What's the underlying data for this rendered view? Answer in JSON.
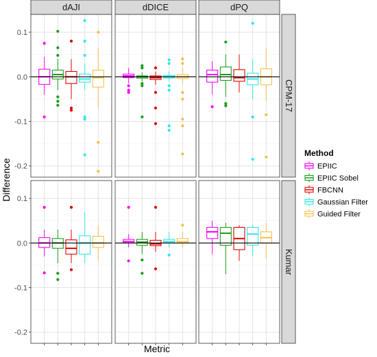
{
  "chart_data": {
    "type": "boxplot",
    "xlabel": "Metric",
    "ylabel": "Difference",
    "ylim": [
      -0.225,
      0.14
    ],
    "yticks": [
      0.1,
      0.0,
      -0.1,
      -0.2
    ],
    "ytick_labels": [
      "0.1",
      "0.0",
      "-0.1",
      "-0.2"
    ],
    "grid": true,
    "reference_line_y": 0,
    "columns": [
      "dAJI",
      "dDICE",
      "dPQ"
    ],
    "rows": [
      "CPM-17",
      "Kumar"
    ],
    "legend": {
      "title": "Method",
      "position": "right",
      "entries": [
        {
          "name": "EPIIC",
          "color": "#ff00ff"
        },
        {
          "name": "EPIIC Sobel",
          "color": "#1a9c1a"
        },
        {
          "name": "FBCNN",
          "color": "#e00000"
        },
        {
          "name": "Gaussian Filter",
          "color": "#33e6e6"
        },
        {
          "name": "Guided Filter",
          "color": "#f5c04a"
        }
      ]
    },
    "panels": [
      {
        "row": "CPM-17",
        "column": "dAJI",
        "boxes": [
          {
            "method": "EPIIC",
            "whisker_low": -0.04,
            "q1": -0.017,
            "median": 0.0,
            "q3": 0.017,
            "whisker_high": 0.045,
            "outliers": [
              0.075,
              -0.09
            ]
          },
          {
            "method": "EPIIC Sobel",
            "whisker_low": -0.03,
            "q1": -0.005,
            "median": 0.005,
            "q3": 0.015,
            "whisker_high": 0.04,
            "outliers": [
              0.102,
              0.065,
              0.048,
              -0.045,
              -0.055,
              -0.064
            ]
          },
          {
            "method": "FBCNN",
            "whisker_low": -0.05,
            "q1": -0.015,
            "median": 0.0,
            "q3": 0.012,
            "whisker_high": 0.04,
            "outliers": [
              0.08,
              -0.07,
              -0.075
            ]
          },
          {
            "method": "Gaussian Filter",
            "whisker_low": -0.03,
            "q1": -0.012,
            "median": -0.005,
            "q3": 0.006,
            "whisker_high": 0.03,
            "outliers": [
              0.126,
              0.08,
              0.048,
              -0.09,
              -0.095,
              -0.175
            ]
          },
          {
            "method": "Guided Filter",
            "whisker_low": -0.07,
            "q1": -0.023,
            "median": -0.002,
            "q3": 0.015,
            "whisker_high": 0.065,
            "outliers": [
              0.1,
              -0.147,
              -0.212
            ]
          }
        ]
      },
      {
        "row": "CPM-17",
        "column": "dDICE",
        "boxes": [
          {
            "method": "EPIIC",
            "whisker_low": -0.015,
            "q1": -0.002,
            "median": 0.002,
            "q3": 0.006,
            "whisker_high": 0.02,
            "outliers": [
              -0.02,
              -0.03,
              -0.035
            ]
          },
          {
            "method": "EPIIC Sobel",
            "whisker_low": -0.01,
            "q1": -0.003,
            "median": 0.0,
            "q3": 0.002,
            "whisker_high": 0.01,
            "outliers": [
              0.02,
              0.025,
              -0.015,
              -0.02,
              -0.09
            ]
          },
          {
            "method": "FBCNN",
            "whisker_low": -0.018,
            "q1": -0.006,
            "median": -0.002,
            "q3": 0.002,
            "whisker_high": 0.012,
            "outliers": [
              0.02,
              -0.035,
              -0.07,
              -0.105
            ]
          },
          {
            "method": "Gaussian Filter",
            "whisker_low": -0.01,
            "q1": -0.003,
            "median": 0.0,
            "q3": 0.003,
            "whisker_high": 0.012,
            "outliers": [
              0.038,
              0.03,
              -0.02,
              -0.03,
              -0.11,
              -0.12
            ]
          },
          {
            "method": "Guided Filter",
            "whisker_low": -0.015,
            "q1": -0.004,
            "median": 0.0,
            "q3": 0.005,
            "whisker_high": 0.02,
            "outliers": [
              0.04,
              0.03,
              -0.035,
              -0.05,
              -0.095,
              -0.11,
              -0.173
            ]
          }
        ]
      },
      {
        "row": "CPM-17",
        "column": "dPQ",
        "boxes": [
          {
            "method": "EPIIC",
            "whisker_low": -0.04,
            "q1": -0.012,
            "median": 0.005,
            "q3": 0.015,
            "whisker_high": 0.035,
            "outliers": [
              -0.067
            ]
          },
          {
            "method": "EPIIC Sobel",
            "whisker_low": -0.045,
            "q1": -0.008,
            "median": 0.005,
            "q3": 0.022,
            "whisker_high": 0.05,
            "outliers": [
              0.078,
              -0.06,
              -0.065
            ]
          },
          {
            "method": "FBCNN",
            "whisker_low": -0.035,
            "q1": -0.01,
            "median": -0.002,
            "q3": 0.016,
            "whisker_high": 0.05,
            "outliers": []
          },
          {
            "method": "Gaussian Filter",
            "whisker_low": -0.05,
            "q1": -0.018,
            "median": -0.005,
            "q3": 0.008,
            "whisker_high": 0.04,
            "outliers": [
              0.12,
              -0.09,
              -0.185
            ]
          },
          {
            "method": "Guided Filter",
            "whisker_low": -0.055,
            "q1": -0.018,
            "median": 0.0,
            "q3": 0.018,
            "whisker_high": 0.065,
            "outliers": [
              -0.085,
              -0.18
            ]
          }
        ]
      },
      {
        "row": "Kumar",
        "column": "dAJI",
        "boxes": [
          {
            "method": "EPIIC",
            "whisker_low": -0.03,
            "q1": -0.01,
            "median": 0.0,
            "q3": 0.012,
            "whisker_high": 0.03,
            "outliers": [
              0.08,
              -0.067
            ]
          },
          {
            "method": "EPIIC Sobel",
            "whisker_low": -0.045,
            "q1": -0.012,
            "median": 0.0,
            "q3": 0.01,
            "whisker_high": 0.03,
            "outliers": [
              -0.068,
              -0.082
            ]
          },
          {
            "method": "FBCNN",
            "whisker_low": -0.045,
            "q1": -0.025,
            "median": -0.012,
            "q3": 0.007,
            "whisker_high": 0.03,
            "outliers": [
              0.08,
              -0.06
            ]
          },
          {
            "method": "Gaussian Filter",
            "whisker_low": -0.045,
            "q1": -0.025,
            "median": 0.0,
            "q3": 0.016,
            "whisker_high": 0.07,
            "outliers": []
          },
          {
            "method": "Guided Filter",
            "whisker_low": -0.04,
            "q1": -0.01,
            "median": 0.0,
            "q3": 0.015,
            "whisker_high": 0.04,
            "outliers": []
          }
        ]
      },
      {
        "row": "Kumar",
        "column": "dDICE",
        "boxes": [
          {
            "method": "EPIIC",
            "whisker_low": -0.01,
            "q1": 0.0,
            "median": 0.003,
            "q3": 0.008,
            "whisker_high": 0.02,
            "outliers": [
              0.08,
              -0.04
            ]
          },
          {
            "method": "EPIIC Sobel",
            "whisker_low": -0.025,
            "q1": -0.005,
            "median": 0.002,
            "q3": 0.008,
            "whisker_high": 0.025,
            "outliers": [
              -0.038,
              -0.068
            ]
          },
          {
            "method": "FBCNN",
            "whisker_low": -0.02,
            "q1": -0.006,
            "median": -0.002,
            "q3": 0.006,
            "whisker_high": 0.025,
            "outliers": [
              0.08,
              -0.058
            ]
          },
          {
            "method": "Gaussian Filter",
            "whisker_low": -0.01,
            "q1": 0.0,
            "median": 0.003,
            "q3": 0.008,
            "whisker_high": 0.025,
            "outliers": [
              -0.027
            ]
          },
          {
            "method": "Guided Filter",
            "whisker_low": -0.01,
            "q1": 0.0,
            "median": 0.003,
            "q3": 0.01,
            "whisker_high": 0.025,
            "outliers": [
              0.04
            ]
          }
        ]
      },
      {
        "row": "Kumar",
        "column": "dPQ",
        "boxes": [
          {
            "method": "EPIIC",
            "whisker_low": -0.025,
            "q1": 0.01,
            "median": 0.025,
            "q3": 0.035,
            "whisker_high": 0.05,
            "outliers": []
          },
          {
            "method": "EPIIC Sobel",
            "whisker_low": -0.07,
            "q1": -0.005,
            "median": 0.022,
            "q3": 0.035,
            "whisker_high": 0.045,
            "outliers": []
          },
          {
            "method": "FBCNN",
            "whisker_low": -0.04,
            "q1": -0.015,
            "median": 0.01,
            "q3": 0.035,
            "whisker_high": 0.04,
            "outliers": []
          },
          {
            "method": "Gaussian Filter",
            "whisker_low": -0.03,
            "q1": -0.005,
            "median": 0.02,
            "q3": 0.035,
            "whisker_high": 0.04,
            "outliers": []
          },
          {
            "method": "Guided Filter",
            "whisker_low": -0.035,
            "q1": 0.0,
            "median": 0.012,
            "q3": 0.025,
            "whisker_high": 0.045,
            "outliers": []
          }
        ]
      }
    ]
  }
}
